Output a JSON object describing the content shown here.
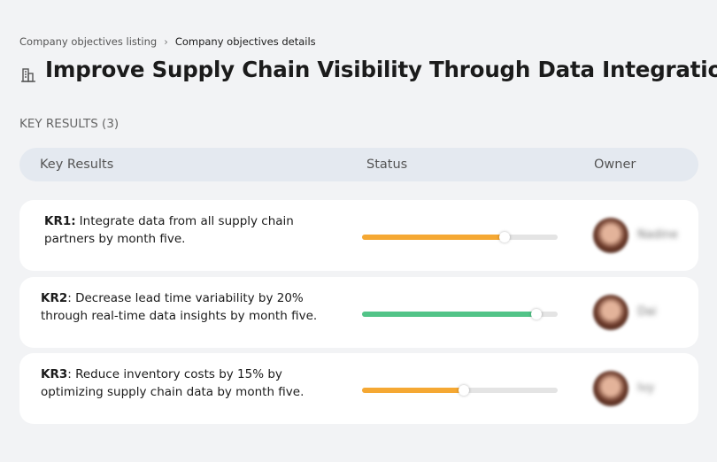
{
  "breadcrumb": {
    "parent": "Company objectives listing",
    "current": "Company objectives details"
  },
  "header": {
    "title": "Improve Supply Chain Visibility Through Data Integration"
  },
  "section": {
    "title": "KEY RESULTS (3)"
  },
  "table": {
    "columns": [
      "Key Results",
      "Status",
      "Owner"
    ],
    "rows": [
      {
        "label": "KR1:",
        "text": "Integrate data from all supply chain partners by month five.",
        "progress": 73,
        "color": "#f5a833",
        "owner": "Nadine"
      },
      {
        "label": "KR2",
        "text": ": Decrease lead time variability by 20% through real-time data insights by month five.",
        "progress": 89,
        "color": "#52c488",
        "owner": "Dai"
      },
      {
        "label": "KR3",
        "text": ": Reduce inventory costs by 15% by optimizing supply chain data by month five.",
        "progress": 52,
        "color": "#f5a833",
        "owner": "Ivy"
      }
    ]
  }
}
